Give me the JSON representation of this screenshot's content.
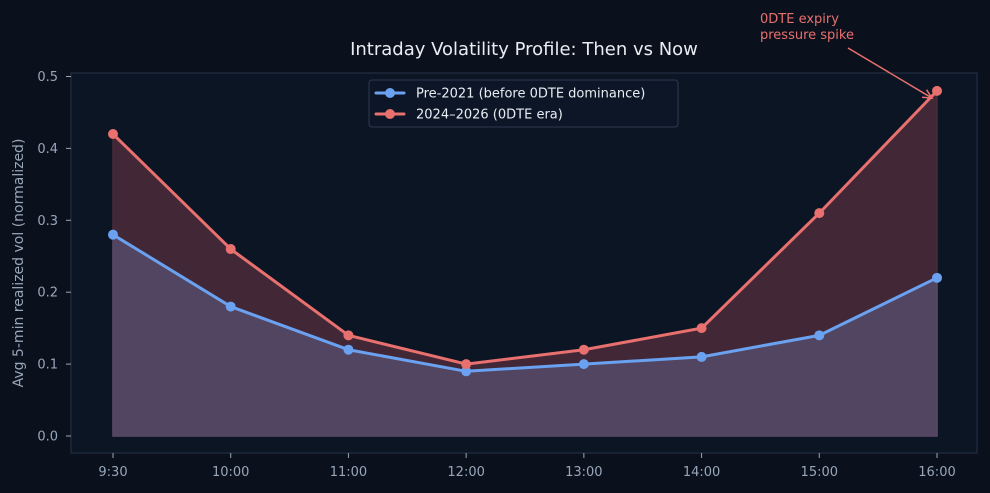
{
  "chart_data": {
    "type": "line",
    "title": "Intraday Volatility Profile: Then vs Now",
    "xlabel": "",
    "ylabel": "Avg 5-min realized vol (normalized)",
    "categories": [
      "9:30",
      "10:00",
      "11:00",
      "12:00",
      "13:00",
      "14:00",
      "15:00",
      "16:00"
    ],
    "ylim": [
      0,
      0.5
    ],
    "yticks": [
      "0.0",
      "0.1",
      "0.2",
      "0.3",
      "0.4",
      "0.5"
    ],
    "grid": false,
    "legend_position": "top-center",
    "series": [
      {
        "name": "Pre-2021 (before 0DTE dominance)",
        "color": "#6aa1f0",
        "fill": "#544866",
        "values": [
          0.28,
          0.18,
          0.12,
          0.09,
          0.1,
          0.11,
          0.14,
          0.22
        ]
      },
      {
        "name": "2024–2026 (0DTE era)",
        "color": "#e8706e",
        "fill": "#482a38",
        "values": [
          0.42,
          0.26,
          0.14,
          0.1,
          0.12,
          0.15,
          0.31,
          0.48
        ]
      }
    ],
    "annotation": {
      "lines": [
        "0DTE expiry",
        "pressure spike"
      ],
      "target_category": "16:00",
      "target_value": 0.47,
      "color": "#e8706e"
    }
  }
}
